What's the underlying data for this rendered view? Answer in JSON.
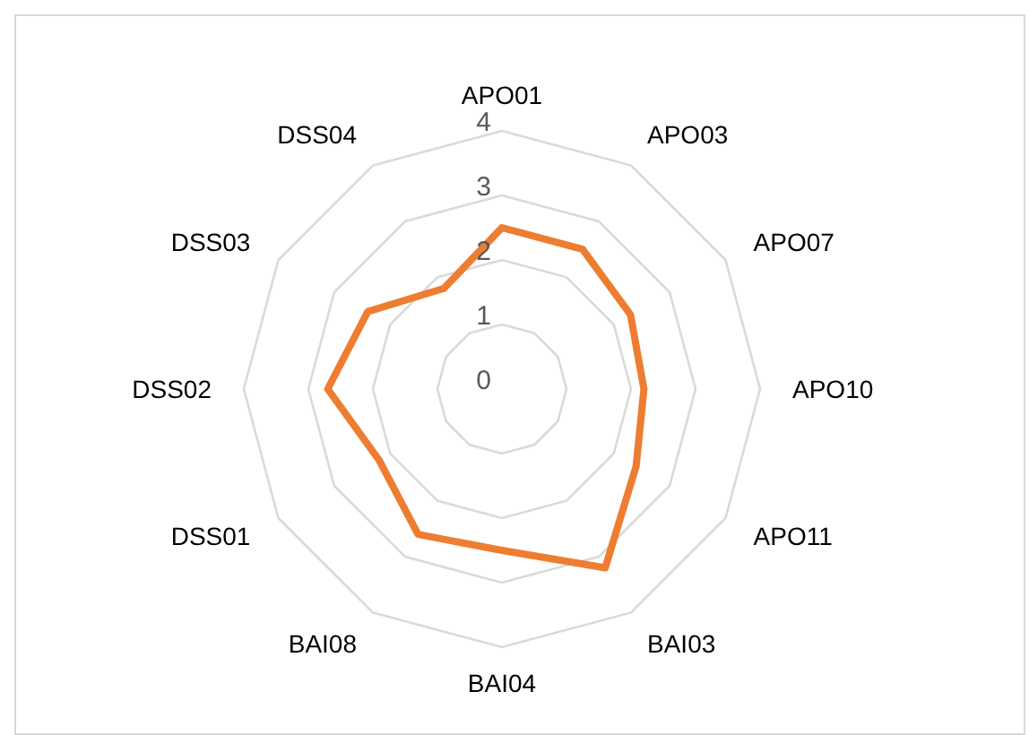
{
  "chart_data": {
    "type": "radar",
    "categories": [
      "APO01",
      "APO03",
      "APO07",
      "APO10",
      "APO11",
      "BAI03",
      "BAI04",
      "BAI08",
      "DSS01",
      "DSS02",
      "DSS03",
      "DSS04"
    ],
    "series": [
      {
        "color": "#ed7d31",
        "values": [
          2.5,
          2.5,
          2.3,
          2.2,
          2.4,
          3.2,
          2.5,
          2.6,
          2.2,
          2.7,
          2.4,
          1.8
        ]
      }
    ],
    "ylim": [
      0,
      4
    ],
    "yticks": [
      0,
      1,
      2,
      3,
      4
    ],
    "grid": true,
    "marker": "none",
    "line_style": "solid"
  }
}
